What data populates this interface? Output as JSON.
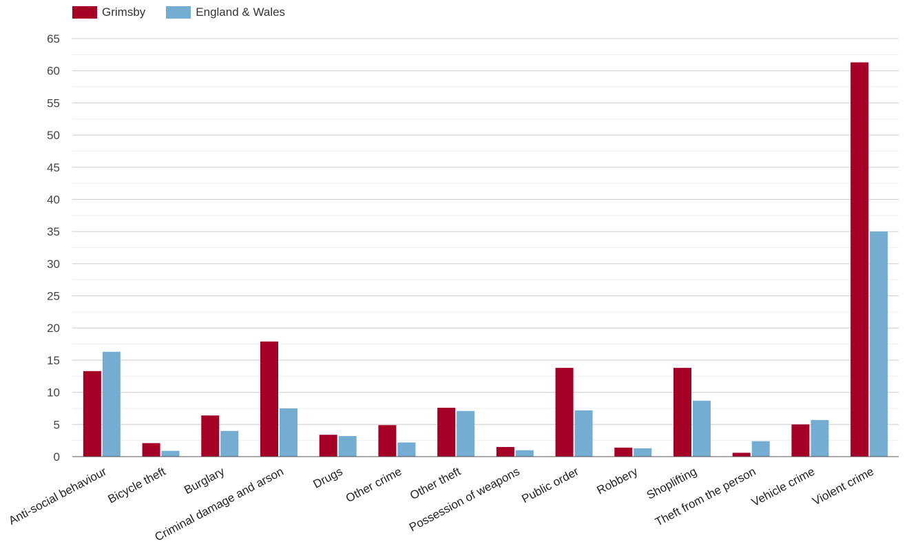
{
  "chart_data": {
    "type": "bar",
    "categories": [
      "Anti-social behaviour",
      "Bicycle theft",
      "Burglary",
      "Criminal damage and arson",
      "Drugs",
      "Other crime",
      "Other theft",
      "Possession of weapons",
      "Public order",
      "Robbery",
      "Shoplifting",
      "Theft from the person",
      "Vehicle crime",
      "Violent crime"
    ],
    "series": [
      {
        "name": "Grimsby",
        "color": "#a50026",
        "values": [
          13.3,
          2.1,
          6.4,
          17.9,
          3.4,
          4.9,
          7.6,
          1.5,
          13.8,
          1.4,
          13.8,
          0.6,
          5.0,
          61.3
        ]
      },
      {
        "name": "England & Wales",
        "color": "#74add1",
        "values": [
          16.3,
          0.9,
          4.0,
          7.5,
          3.2,
          2.2,
          7.1,
          1.0,
          7.2,
          1.3,
          8.7,
          2.4,
          5.7,
          35.0
        ]
      }
    ],
    "yticks": [
      "0",
      "5",
      "10",
      "15",
      "20",
      "25",
      "30",
      "35",
      "40",
      "45",
      "50",
      "55",
      "60",
      "65"
    ],
    "ylim": [
      0,
      65
    ],
    "grid": true,
    "legend_position": "top-left"
  }
}
